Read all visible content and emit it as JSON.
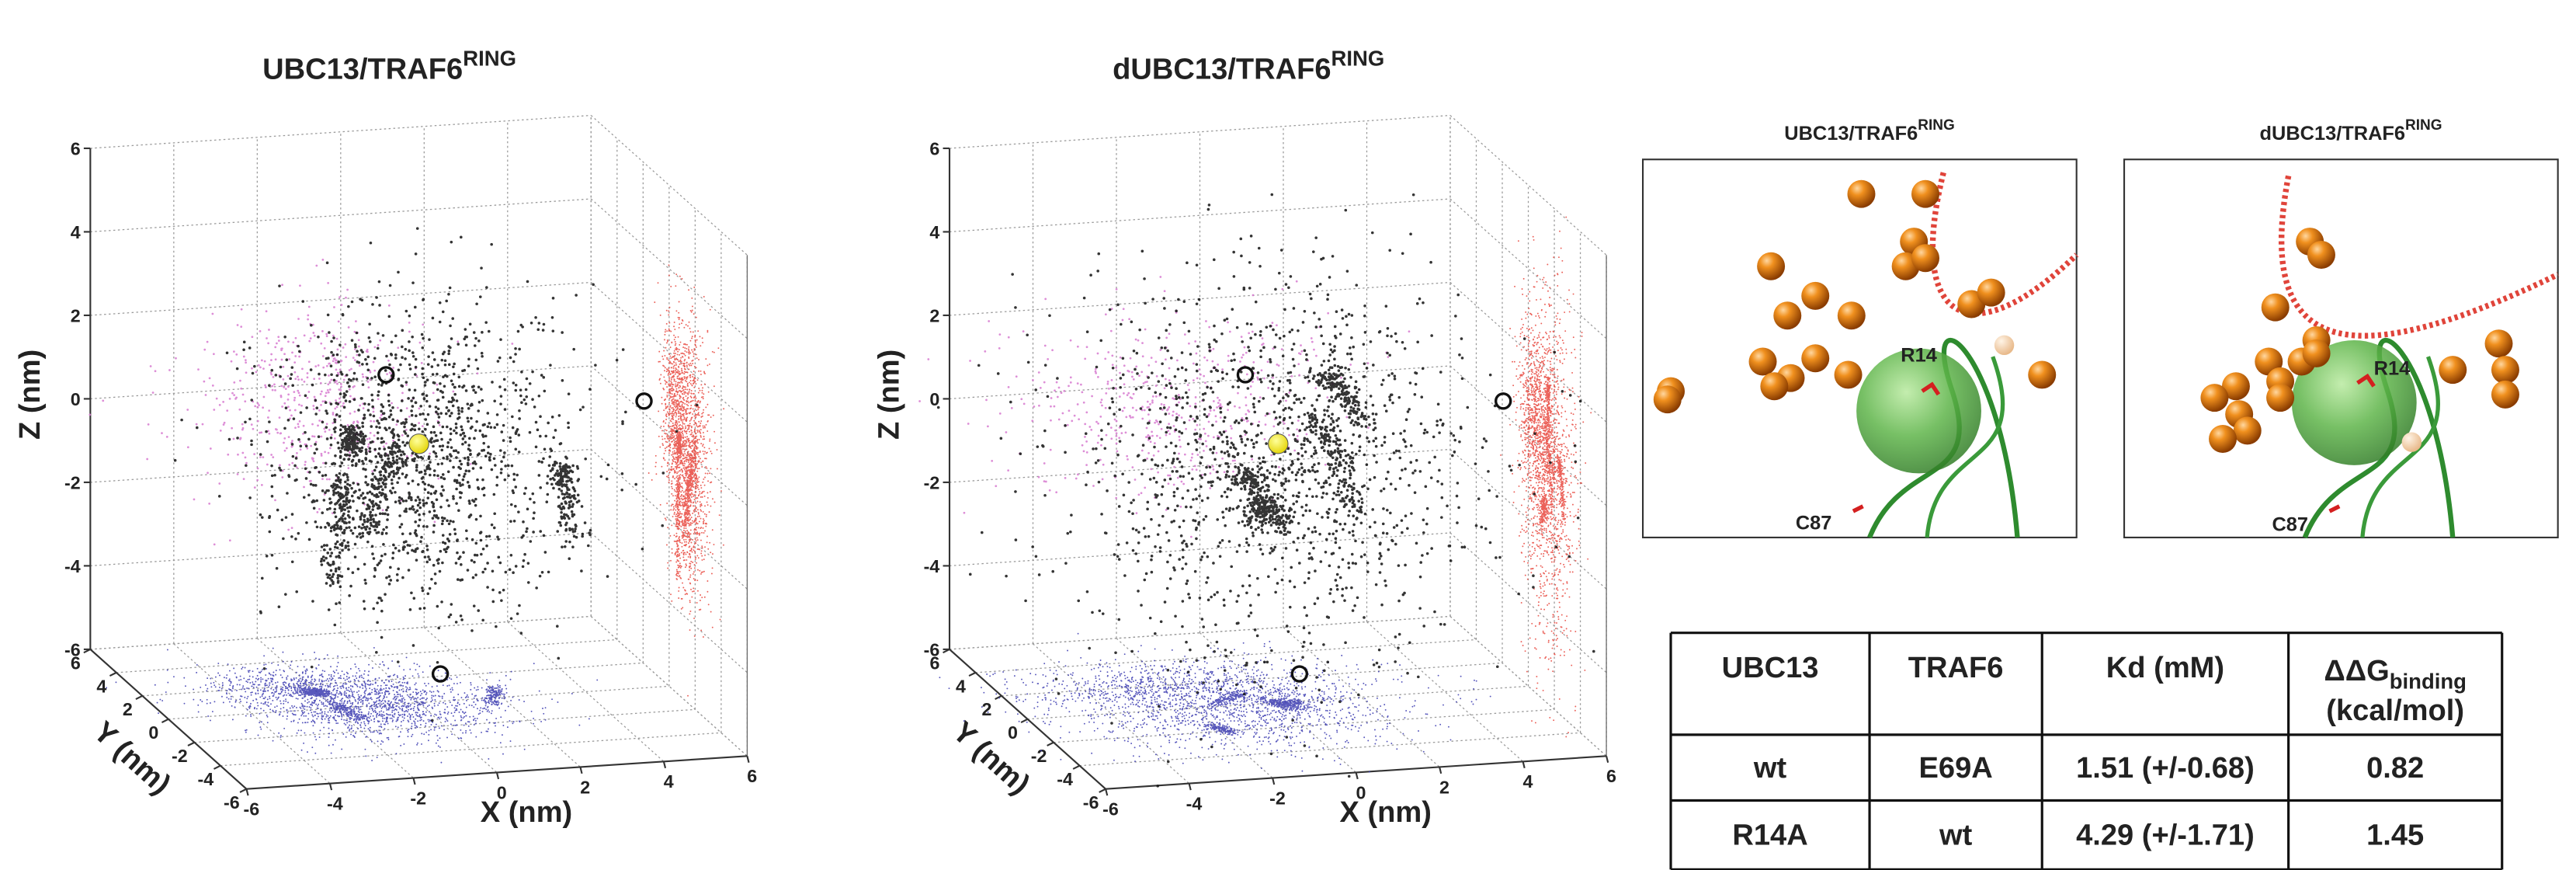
{
  "panels": [
    {
      "title": "UBC13/TRAF6",
      "title_sup": "RING",
      "z_label": "Z (nm)",
      "y_label": "Y (nm)",
      "x_label": "X (nm)",
      "z_ticks": [
        6,
        4,
        2,
        0,
        -2,
        -4,
        -6
      ],
      "y_ticks": [
        6,
        4,
        2,
        0,
        -2,
        -4,
        -6
      ],
      "x_ticks": [
        -6,
        -4,
        -2,
        0,
        2,
        4,
        6
      ]
    },
    {
      "title": "dUBC13/TRAF6",
      "title_sup": "RING",
      "z_label": "Z (nm)",
      "y_label": "Y (nm)",
      "x_label": "X (nm)",
      "z_ticks": [
        6,
        4,
        2,
        0,
        -2,
        -4,
        -6
      ],
      "y_ticks": [
        6,
        4,
        2,
        0,
        -2,
        -4,
        -6
      ],
      "x_ticks": [
        -6,
        -4,
        -2,
        0,
        2,
        4,
        6
      ]
    }
  ],
  "structures": [
    {
      "title": "UBC13/TRAF6",
      "title_sup": "RING",
      "labels": [
        "R14",
        "C87"
      ]
    },
    {
      "title": "dUBC13/TRAF6",
      "title_sup": "RING",
      "labels": [
        "R14",
        "C87"
      ]
    }
  ],
  "table": {
    "header": [
      "UBC13",
      "TRAF6",
      "Kd (mM)"
    ],
    "ddg": {
      "symbol": "ΔΔG",
      "sub": "binding",
      "unit": "(kcal/mol)"
    },
    "rows": [
      [
        "wt",
        "E69A",
        "1.51 (+/-0.68)",
        "0.82"
      ],
      [
        "R14A",
        "wt",
        "4.29 (+/-1.71)",
        "1.45"
      ]
    ]
  }
}
